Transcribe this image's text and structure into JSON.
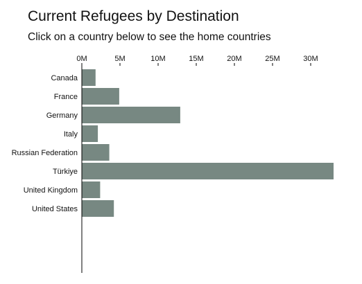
{
  "header": {
    "title": "Current Refugees by Destination",
    "subtitle": "Click on a country below to see the home countries"
  },
  "style": {
    "bar_color": "#778882",
    "axis_color": "#000000"
  },
  "chart_data": {
    "type": "bar",
    "orientation": "horizontal",
    "title": "Current Refugees by Destination",
    "xlabel": "",
    "ylabel": "",
    "xlim": [
      0,
      33000000
    ],
    "x_ticks": [
      0,
      5000000,
      10000000,
      15000000,
      20000000,
      25000000,
      30000000
    ],
    "x_tick_labels": [
      "0M",
      "5M",
      "10M",
      "15M",
      "20M",
      "25M",
      "30M"
    ],
    "axis_position": "top",
    "grid": false,
    "categories": [
      "Canada",
      "France",
      "Germany",
      "Italy",
      "Russian Federation",
      "Türkiye",
      "United Kingdom",
      "United States"
    ],
    "values": [
      1800000,
      4900000,
      12900000,
      2100000,
      3600000,
      33000000,
      2400000,
      4200000
    ]
  }
}
